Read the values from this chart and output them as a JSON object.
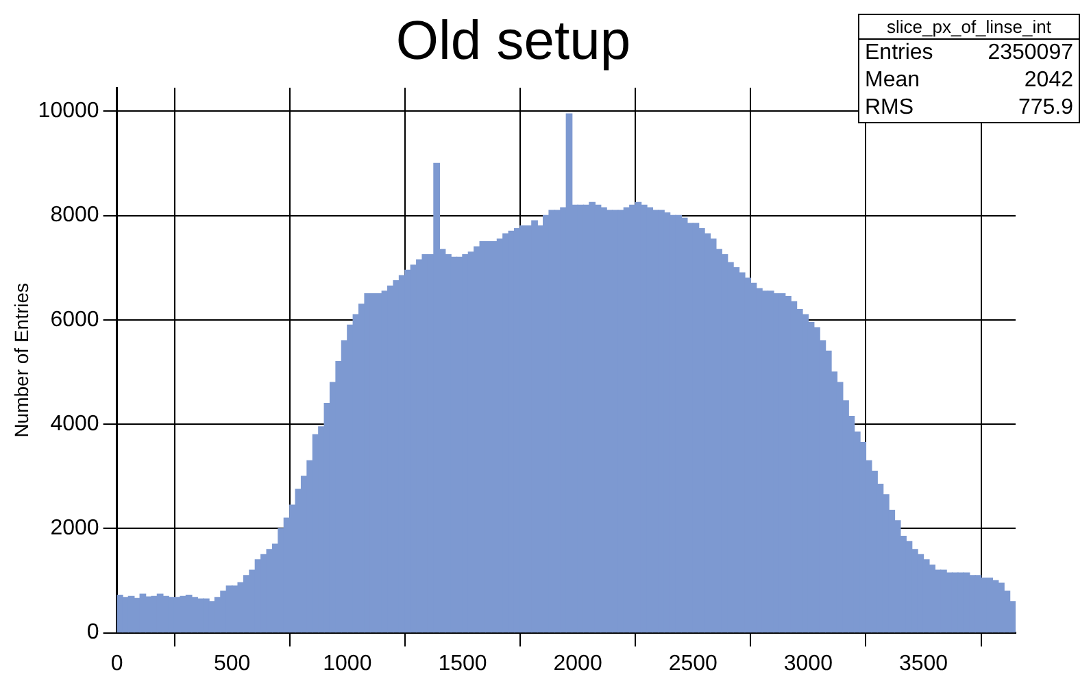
{
  "chart_data": {
    "type": "histogram",
    "title": "Old setup",
    "ylabel": "Number of Entries",
    "bins": [
      0,
      25,
      50,
      75,
      100,
      125,
      150,
      175,
      200,
      225,
      250,
      275,
      300,
      325,
      350,
      375,
      400,
      425,
      450,
      475,
      500,
      525,
      550,
      575,
      600,
      625,
      650,
      675,
      700,
      725,
      750,
      775,
      800,
      825,
      850,
      875,
      900,
      925,
      950,
      975,
      1000,
      1025,
      1050,
      1075,
      1100,
      1125,
      1150,
      1175,
      1200,
      1225,
      1250,
      1275,
      1300,
      1325,
      1350,
      1375,
      1400,
      1425,
      1450,
      1475,
      1500,
      1525,
      1550,
      1575,
      1600,
      1625,
      1650,
      1675,
      1700,
      1725,
      1750,
      1775,
      1800,
      1825,
      1850,
      1875,
      1900,
      1925,
      1950,
      1975,
      2000,
      2025,
      2050,
      2075,
      2100,
      2125,
      2150,
      2175,
      2200,
      2225,
      2250,
      2275,
      2300,
      2325,
      2350,
      2375,
      2400,
      2425,
      2450,
      2475,
      2500,
      2525,
      2550,
      2575,
      2600,
      2625,
      2650,
      2675,
      2700,
      2725,
      2750,
      2775,
      2800,
      2825,
      2850,
      2875,
      2900,
      2925,
      2950,
      2975,
      3000,
      3025,
      3050,
      3075,
      3100,
      3125,
      3150,
      3175,
      3200,
      3225,
      3250,
      3275,
      3300,
      3325,
      3350,
      3375,
      3400,
      3425,
      3450,
      3475,
      3500,
      3525,
      3550,
      3575,
      3600,
      3625,
      3650,
      3675,
      3700,
      3725,
      3750,
      3775,
      3800,
      3825,
      3850,
      3875,
      3900
    ],
    "values": [
      720,
      680,
      700,
      660,
      740,
      690,
      700,
      740,
      700,
      680,
      680,
      700,
      720,
      680,
      650,
      650,
      600,
      680,
      800,
      900,
      900,
      960,
      1100,
      1200,
      1400,
      1500,
      1600,
      1700,
      2000,
      2200,
      2450,
      2750,
      3000,
      3300,
      3800,
      3950,
      4400,
      4800,
      5200,
      5600,
      5900,
      6100,
      6300,
      6500,
      6500,
      6500,
      6550,
      6650,
      6750,
      6850,
      6950,
      7050,
      7150,
      7250,
      7250,
      9000,
      7350,
      7250,
      7200,
      7200,
      7250,
      7300,
      7400,
      7500,
      7500,
      7500,
      7550,
      7650,
      7700,
      7750,
      7800,
      7800,
      7900,
      7800,
      8000,
      8100,
      8100,
      8150,
      9950,
      8200,
      8200,
      8200,
      8250,
      8200,
      8150,
      8100,
      8100,
      8100,
      8150,
      8200,
      8250,
      8200,
      8150,
      8100,
      8100,
      8050,
      8000,
      8000,
      7950,
      7850,
      7850,
      7750,
      7650,
      7550,
      7350,
      7250,
      7100,
      7000,
      6900,
      6800,
      6700,
      6600,
      6550,
      6550,
      6500,
      6500,
      6450,
      6350,
      6200,
      6100,
      5950,
      5850,
      5600,
      5400,
      5000,
      4800,
      4450,
      4150,
      3850,
      3650,
      3300,
      3100,
      2850,
      2650,
      2350,
      2150,
      1850,
      1750,
      1600,
      1500,
      1400,
      1300,
      1200,
      1200,
      1150,
      1150,
      1150,
      1150,
      1100,
      1100,
      1050,
      1050,
      1000,
      950,
      800,
      600
    ],
    "color": "#7d99d1",
    "xlim": [
      0,
      3900
    ],
    "xticks": [
      0,
      500,
      1000,
      1500,
      2000,
      2500,
      3000,
      3500
    ],
    "ylim": [
      0,
      10450
    ],
    "yticks": [
      0,
      2000,
      4000,
      6000,
      8000,
      10000
    ],
    "grid": true,
    "annotations": [
      "slice_px_of_linse_int",
      "Entries",
      "2350097",
      "Mean",
      "2042",
      "RMS",
      "775.9"
    ]
  }
}
